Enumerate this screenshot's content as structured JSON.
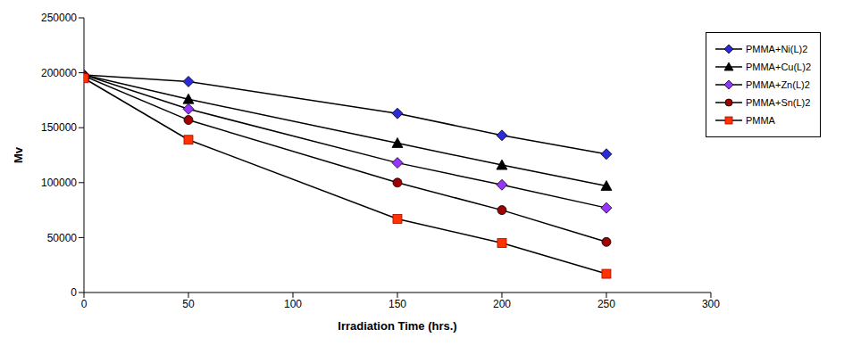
{
  "chart_data": {
    "type": "line",
    "x_label": "Irradiation Time (hrs.)",
    "y_label": "Mv",
    "x": [
      0,
      50,
      150,
      200,
      250
    ],
    "series": [
      {
        "name": "PMMA+Ni(L)2",
        "color": "#2b2bdc",
        "marker": "diamond",
        "values": [
          198000,
          192000,
          163000,
          143000,
          126000
        ]
      },
      {
        "name": "PMMA+Cu(L)2",
        "color": "#000000",
        "marker": "triangle",
        "values": [
          198000,
          176000,
          136000,
          116000,
          97000
        ]
      },
      {
        "name": "PMMA+Zn(L)2",
        "color": "#9933ff",
        "marker": "diamond",
        "values": [
          198000,
          167000,
          118000,
          98000,
          77000
        ]
      },
      {
        "name": "PMMA+Sn(L)2",
        "color": "#a00000",
        "marker": "circle",
        "values": [
          197000,
          157000,
          100000,
          75000,
          46000
        ]
      },
      {
        "name": "PMMA",
        "color": "#ff3300",
        "marker": "square",
        "values": [
          195000,
          139000,
          67000,
          45000,
          17000
        ]
      }
    ],
    "xlim": [
      0,
      300
    ],
    "xticks": [
      0,
      50,
      100,
      150,
      200,
      250,
      300
    ],
    "ylim": [
      0,
      250000
    ],
    "yticks": [
      0,
      50000,
      100000,
      150000,
      200000,
      250000
    ],
    "grid": false,
    "legend": "upper right"
  }
}
